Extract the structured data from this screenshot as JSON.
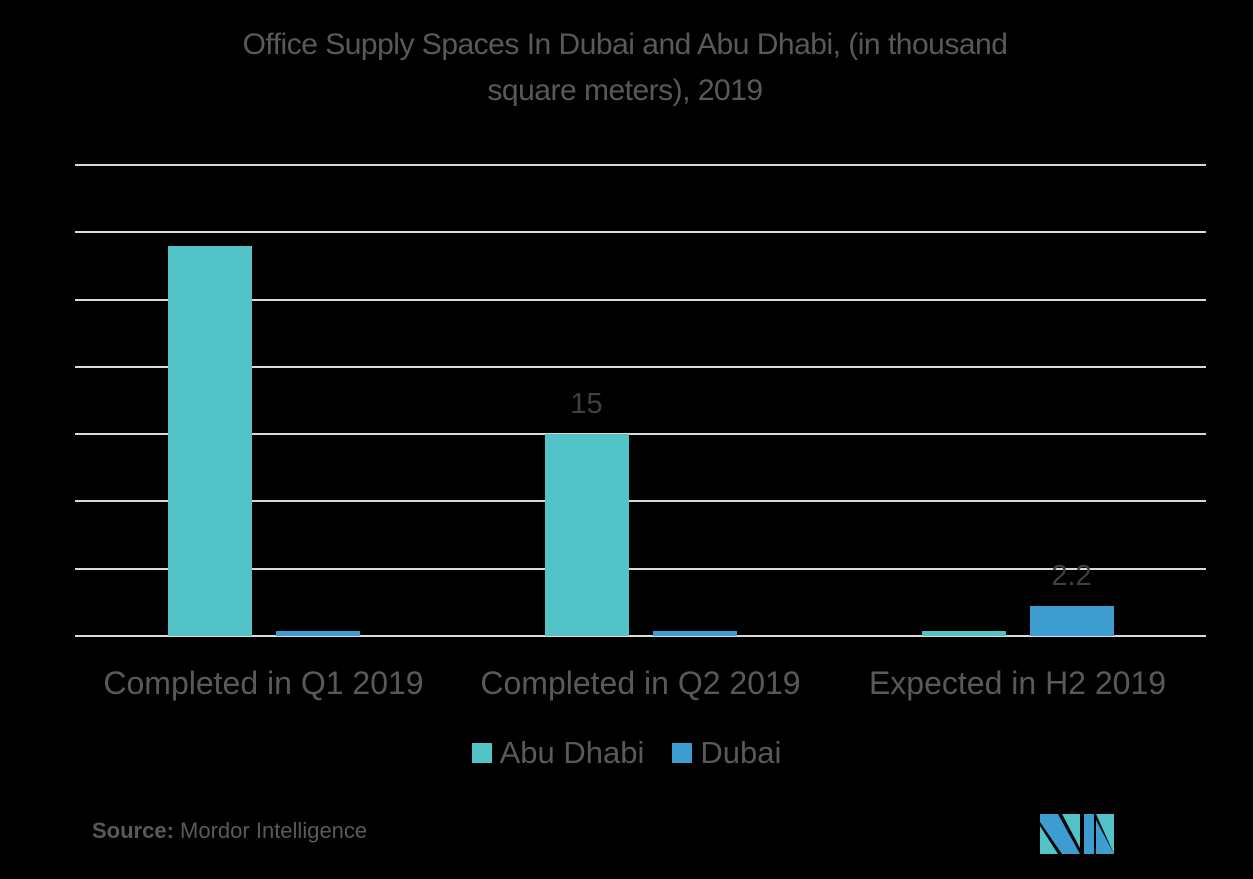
{
  "title_line1": "Office Supply Spaces In Dubai and Abu Dhabi, (in thousand",
  "title_line2": "square meters), 2019",
  "chart_data": {
    "type": "bar",
    "title": "Office Supply Spaces In Dubai and Abu Dhabi, (in thousand square meters), 2019",
    "xlabel": "",
    "ylabel": "",
    "categories": [
      "Completed in Q1 2019",
      "Completed in Q2 2019",
      "Expected in H2 2019"
    ],
    "series": [
      {
        "name": "Abu Dhabi",
        "color": "#52c3c6",
        "values": [
          29,
          15,
          0.4
        ]
      },
      {
        "name": "Dubai",
        "color": "#3d9dd1",
        "values": [
          0.4,
          0.4,
          2.2
        ]
      }
    ],
    "data_labels": [
      {
        "series": "Abu Dhabi",
        "category": "Completed in Q2 2019",
        "text": "15"
      },
      {
        "series": "Dubai",
        "category": "Expected in H2 2019",
        "text": "2.2"
      }
    ],
    "ylim": [
      0,
      35
    ],
    "gridlines": [
      0,
      5,
      10,
      15,
      20,
      25,
      30,
      35
    ],
    "grid": true,
    "y_tick_labels_visible": false,
    "legend_position": "bottom"
  },
  "legend": [
    {
      "label": "Abu Dhabi",
      "color": "#52c3c6"
    },
    {
      "label": "Dubai",
      "color": "#3d9dd1"
    }
  ],
  "source_label": "Source:",
  "source_value": "Mordor Intelligence",
  "logo": "mordor-intelligence-logo"
}
